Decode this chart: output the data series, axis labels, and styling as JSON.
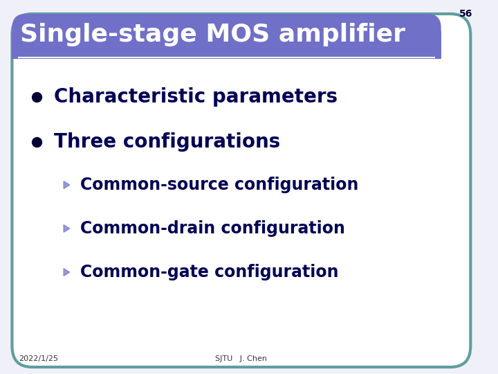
{
  "title": "Single-stage MOS amplifier",
  "slide_number": "56",
  "header_bg_color": "#7070C8",
  "header_text_color": "#FFFFFF",
  "border_color": "#5F9EA0",
  "bg_color": "#F0F0F8",
  "body_bg_color": "#FFFFFF",
  "bullet1": "Characteristic parameters",
  "bullet2": "Three configurations",
  "sub_bullet1": "Common-source configuration",
  "sub_bullet2": "Common-drain configuration",
  "sub_bullet3": "Common-gate configuration",
  "main_bullet_color": "#000033",
  "sub_bullet_color": "#7070C8",
  "main_text_color": "#000055",
  "sub_text_color": "#000055",
  "footer_date": "2022/1/25",
  "footer_center": "SJTU   J. Chen",
  "footer_color": "#333333"
}
